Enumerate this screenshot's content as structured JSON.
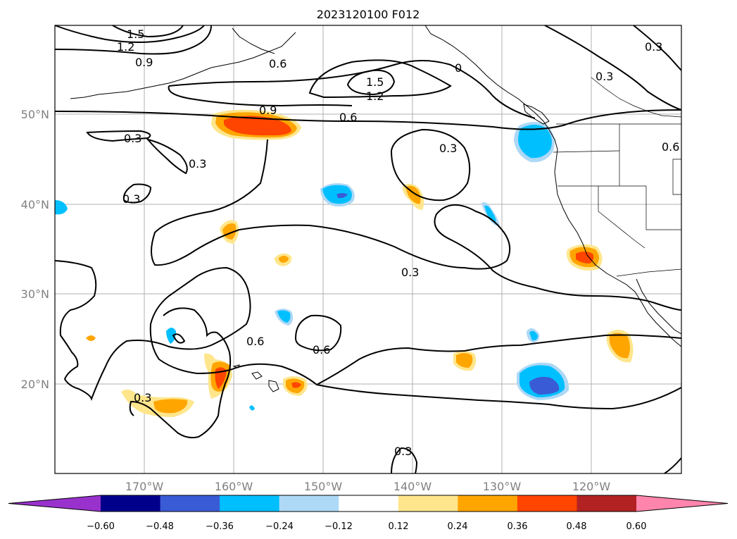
{
  "title": "2023120100 F012",
  "lat_labels": [
    "50°N",
    "40°N",
    "30°N",
    "20°N"
  ],
  "lon_labels": [
    "170°W",
    "160°W",
    "150°W",
    "140°W",
    "130°W",
    "120°W"
  ],
  "contour_labels": [
    "1.5",
    "1.2",
    "0.9",
    "0.6",
    "0",
    "0.3",
    "0.3",
    "1.5",
    "1.2",
    "0.9",
    "0.6",
    "0.3",
    "0.3",
    "0.3",
    "0.6",
    "0.3",
    "0.3",
    "0.6",
    "0.6",
    "0.3",
    "0.3"
  ],
  "colorbar": {
    "tick_labels": [
      "−0.60",
      "−0.48",
      "−0.36",
      "−0.24",
      "−0.12",
      "0.12",
      "0.24",
      "0.36",
      "0.48",
      "0.60"
    ],
    "colors": [
      "#9932cc",
      "#00008b",
      "#3a5bd6",
      "#00bfff",
      "#add8f6",
      "#ffffff",
      "#ffe68c",
      "#ffa500",
      "#ff4500",
      "#b22222",
      "#ff85ad"
    ]
  }
}
